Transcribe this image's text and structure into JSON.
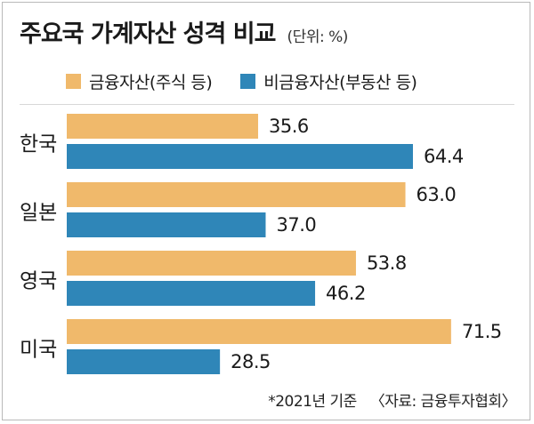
{
  "header": {
    "title": "주요국 가계자산 성격 비교",
    "unit": "(단위: %)"
  },
  "footer": {
    "note": "*2021년 기준",
    "source": "〈자료: 금융투자협회〉"
  },
  "colors": {
    "financial": "#f0b96b",
    "non_financial": "#2f86b8",
    "text": "#1a1a1a"
  },
  "chart_data": {
    "type": "bar",
    "orientation": "horizontal",
    "title": "주요국 가계자산 성격 비교",
    "unit": "(단위: %)",
    "categories": [
      "한국",
      "일본",
      "영국",
      "미국"
    ],
    "series": [
      {
        "name": "금융자산(주식 등)",
        "values": [
          35.6,
          63.0,
          53.8,
          71.5
        ]
      },
      {
        "name": "비금융자산(부동산 등)",
        "values": [
          64.4,
          37.0,
          46.2,
          28.5
        ]
      }
    ],
    "value_labels": [
      [
        "35.6",
        "63.0",
        "53.8",
        "71.5"
      ],
      [
        "64.4",
        "37.0",
        "46.2",
        "28.5"
      ]
    ],
    "xlim": [
      0,
      100
    ],
    "grid": false,
    "legend_position": "top"
  }
}
